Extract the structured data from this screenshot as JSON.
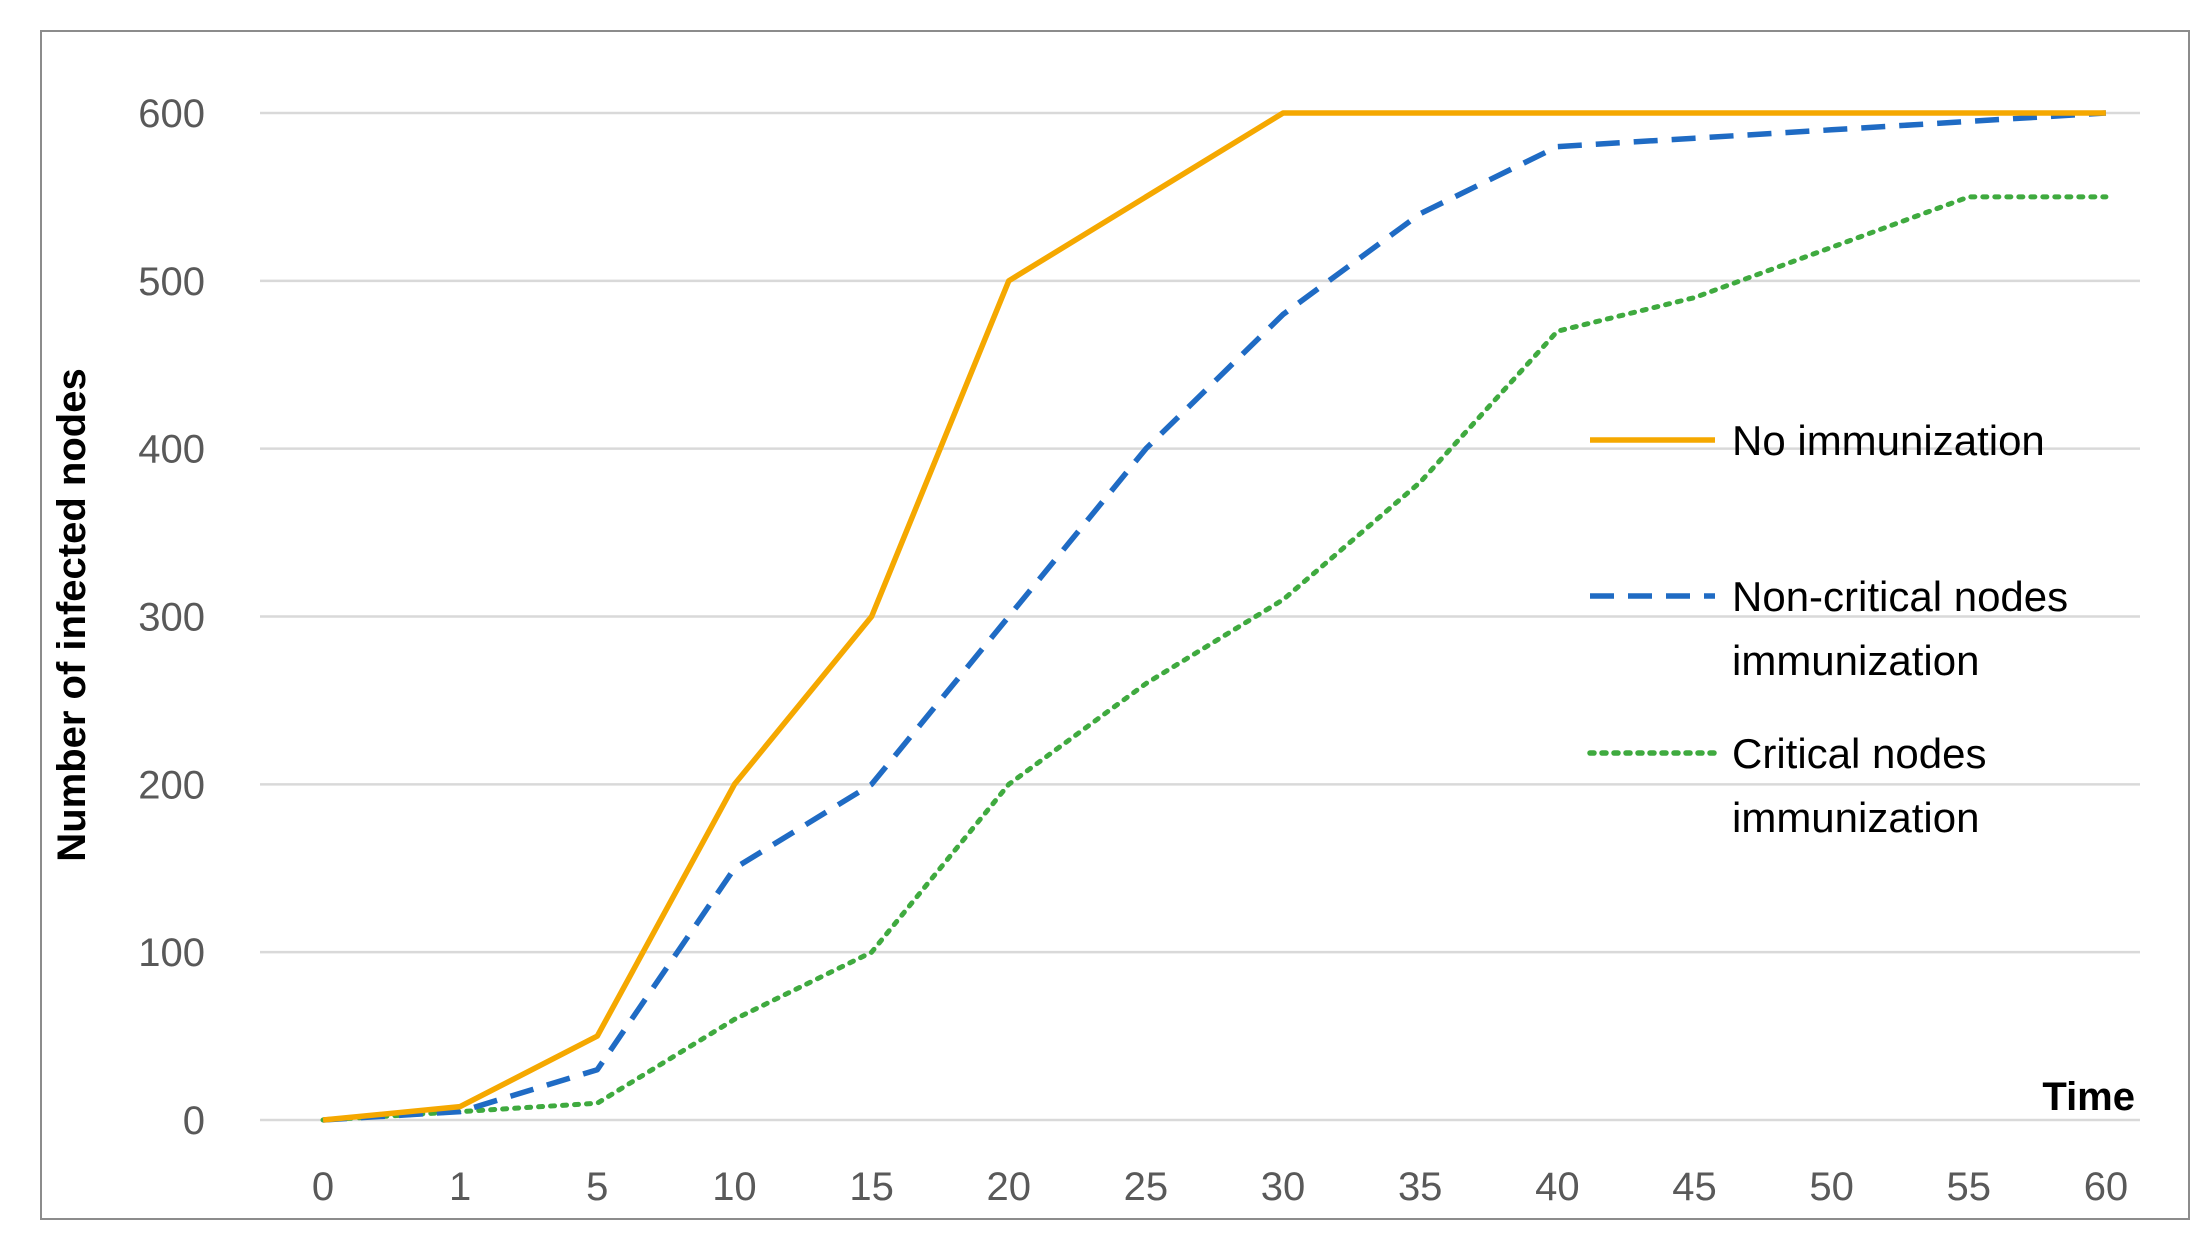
{
  "chart_data": {
    "type": "line",
    "title": "",
    "xlabel": "Time",
    "ylabel": "Number of infected nodes",
    "categories": [
      "0",
      "1",
      "5",
      "10",
      "15",
      "20",
      "25",
      "30",
      "35",
      "40",
      "45",
      "50",
      "55",
      "60"
    ],
    "ylim": [
      0,
      600
    ],
    "yticks": [
      "0",
      "100",
      "200",
      "300",
      "400",
      "500",
      "600"
    ],
    "grid": true,
    "legend_position": "right",
    "series": [
      {
        "name": "No immunization",
        "color": "#F5A800",
        "style": "solid",
        "values": [
          0,
          8,
          50,
          200,
          300,
          500,
          550,
          600,
          600,
          600,
          600,
          600,
          600,
          600
        ]
      },
      {
        "name": "Non-critical nodes immunization",
        "name_lines": [
          "Non-critical nodes",
          "immunization"
        ],
        "color": "#1F6BC4",
        "style": "dashed",
        "values": [
          0,
          5,
          30,
          150,
          200,
          300,
          400,
          480,
          540,
          580,
          585,
          590,
          595,
          600
        ]
      },
      {
        "name": "Critical nodes immunization",
        "name_lines": [
          "Critical nodes",
          "immunization"
        ],
        "color": "#3FAA3F",
        "style": "dotted",
        "values": [
          0,
          5,
          10,
          60,
          100,
          200,
          260,
          310,
          380,
          470,
          490,
          520,
          550,
          550
        ]
      }
    ]
  }
}
